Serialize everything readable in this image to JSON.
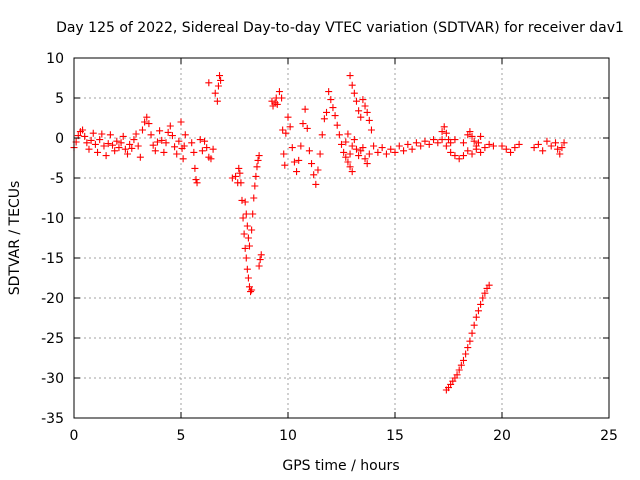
{
  "chart_data": {
    "type": "scatter",
    "title": "Day 125 of 2022, Sidereal Day-to-day VTEC variation (SDTVAR) for receiver dav1",
    "xlabel": "GPS time / hours",
    "ylabel": "SDTVAR / TECUs",
    "xlim": [
      0,
      25
    ],
    "ylim": [
      -35,
      10
    ],
    "xticks": [
      0,
      5,
      10,
      15,
      20,
      25
    ],
    "yticks": [
      10,
      5,
      0,
      -5,
      -10,
      -15,
      -20,
      -25,
      -30,
      -35
    ],
    "xtick_labels": [
      "0",
      "5",
      "10",
      "15",
      "20",
      "25"
    ],
    "ytick_labels": [
      "10",
      "5",
      "0",
      "-5",
      "-10",
      "-15",
      "-20",
      "-25",
      "-30",
      "-35"
    ],
    "grid": true,
    "marker": "plus",
    "color": "#ff0000",
    "series": [
      {
        "name": "SDTVAR",
        "points": [
          [
            0.0,
            -1.2
          ],
          [
            0.1,
            -0.5
          ],
          [
            0.2,
            0.3
          ],
          [
            0.3,
            0.8
          ],
          [
            0.4,
            1.0
          ],
          [
            0.5,
            0.2
          ],
          [
            0.6,
            -0.6
          ],
          [
            0.7,
            -1.4
          ],
          [
            0.8,
            -0.3
          ],
          [
            0.9,
            0.6
          ],
          [
            1.0,
            -0.8
          ],
          [
            1.1,
            -1.8
          ],
          [
            1.2,
            -0.2
          ],
          [
            1.3,
            0.5
          ],
          [
            1.4,
            -1.0
          ],
          [
            1.5,
            -2.2
          ],
          [
            1.6,
            -0.7
          ],
          [
            1.7,
            0.4
          ],
          [
            1.8,
            -0.9
          ],
          [
            1.9,
            -1.6
          ],
          [
            2.0,
            -0.4
          ],
          [
            2.1,
            -1.2
          ],
          [
            2.2,
            -0.6
          ],
          [
            2.3,
            0.2
          ],
          [
            2.4,
            -1.4
          ],
          [
            2.5,
            -2.0
          ],
          [
            2.6,
            -0.8
          ],
          [
            2.7,
            -1.3
          ],
          [
            2.8,
            -0.2
          ],
          [
            2.9,
            0.5
          ],
          [
            3.0,
            -1.0
          ],
          [
            3.1,
            -2.4
          ],
          [
            3.2,
            1.0
          ],
          [
            3.3,
            2.0
          ],
          [
            3.4,
            2.6
          ],
          [
            3.5,
            1.8
          ],
          [
            3.6,
            0.4
          ],
          [
            3.7,
            -0.9
          ],
          [
            3.8,
            -1.6
          ],
          [
            3.9,
            -0.5
          ],
          [
            4.0,
            0.9
          ],
          [
            4.1,
            -0.3
          ],
          [
            4.2,
            -1.8
          ],
          [
            4.3,
            -0.6
          ],
          [
            4.4,
            0.7
          ],
          [
            4.5,
            1.5
          ],
          [
            4.6,
            0.3
          ],
          [
            4.7,
            -1.1
          ],
          [
            4.8,
            -2.0
          ],
          [
            4.9,
            -0.4
          ],
          [
            5.0,
            2.0
          ],
          [
            5.05,
            -1.3
          ],
          [
            5.1,
            -2.6
          ],
          [
            5.15,
            -1.0
          ],
          [
            5.2,
            0.4
          ],
          [
            5.5,
            -0.6
          ],
          [
            5.6,
            -1.8
          ],
          [
            5.65,
            -3.8
          ],
          [
            5.7,
            -5.2
          ],
          [
            5.75,
            -5.6
          ],
          [
            5.9,
            -0.2
          ],
          [
            6.0,
            -1.6
          ],
          [
            6.1,
            -0.4
          ],
          [
            6.2,
            -1.2
          ],
          [
            6.3,
            -2.4
          ],
          [
            6.4,
            -2.6
          ],
          [
            6.5,
            -1.4
          ],
          [
            6.3,
            6.9
          ],
          [
            6.6,
            5.6
          ],
          [
            6.7,
            4.6
          ],
          [
            6.75,
            6.5
          ],
          [
            6.8,
            7.8
          ],
          [
            6.85,
            7.2
          ],
          [
            7.4,
            -5.0
          ],
          [
            7.55,
            -4.8
          ],
          [
            7.65,
            -5.6
          ],
          [
            7.7,
            -3.8
          ],
          [
            7.75,
            -4.4
          ],
          [
            7.8,
            -5.6
          ],
          [
            7.85,
            -7.8
          ],
          [
            7.9,
            -10.0
          ],
          [
            7.95,
            -12.0
          ],
          [
            8.0,
            -13.8
          ],
          [
            8.05,
            -15.0
          ],
          [
            8.1,
            -16.4
          ],
          [
            8.15,
            -17.5
          ],
          [
            8.2,
            -18.6
          ],
          [
            8.25,
            -19.2
          ],
          [
            8.3,
            -19.0
          ],
          [
            8.0,
            -8.0
          ],
          [
            8.05,
            -9.5
          ],
          [
            8.1,
            -11.0
          ],
          [
            8.15,
            -12.5
          ],
          [
            8.2,
            -13.5
          ],
          [
            8.3,
            -11.5
          ],
          [
            8.35,
            -9.5
          ],
          [
            8.4,
            -7.5
          ],
          [
            8.45,
            -6.0
          ],
          [
            8.5,
            -4.8
          ],
          [
            8.55,
            -3.6
          ],
          [
            8.6,
            -2.8
          ],
          [
            8.65,
            -2.2
          ],
          [
            8.65,
            -16.0
          ],
          [
            8.7,
            -15.2
          ],
          [
            8.75,
            -14.6
          ],
          [
            9.25,
            4.6
          ],
          [
            9.3,
            4.0
          ],
          [
            9.4,
            4.4
          ],
          [
            9.45,
            5.0
          ],
          [
            9.5,
            4.2
          ],
          [
            9.6,
            5.8
          ],
          [
            9.7,
            5.0
          ],
          [
            9.75,
            1.0
          ],
          [
            9.8,
            -2.0
          ],
          [
            9.85,
            -3.4
          ],
          [
            9.9,
            0.6
          ],
          [
            10.0,
            2.6
          ],
          [
            10.1,
            1.4
          ],
          [
            10.2,
            -1.2
          ],
          [
            10.3,
            -3.0
          ],
          [
            10.4,
            -4.2
          ],
          [
            10.5,
            -2.8
          ],
          [
            10.6,
            -1.0
          ],
          [
            10.7,
            1.8
          ],
          [
            10.8,
            3.6
          ],
          [
            10.9,
            1.2
          ],
          [
            11.0,
            -1.6
          ],
          [
            11.1,
            -3.2
          ],
          [
            11.2,
            -4.6
          ],
          [
            11.3,
            -5.8
          ],
          [
            11.4,
            -4.0
          ],
          [
            11.5,
            -2.0
          ],
          [
            11.6,
            0.4
          ],
          [
            11.7,
            2.4
          ],
          [
            11.8,
            3.2
          ],
          [
            11.9,
            5.8
          ],
          [
            12.0,
            4.8
          ],
          [
            12.1,
            3.8
          ],
          [
            12.2,
            2.8
          ],
          [
            12.3,
            1.6
          ],
          [
            12.4,
            0.4
          ],
          [
            12.5,
            -0.8
          ],
          [
            12.6,
            -1.8
          ],
          [
            12.7,
            -2.4
          ],
          [
            12.8,
            -3.0
          ],
          [
            12.9,
            -2.0
          ],
          [
            13.0,
            -1.0
          ],
          [
            13.1,
            -0.2
          ],
          [
            13.2,
            -1.4
          ],
          [
            13.3,
            -2.2
          ],
          [
            13.4,
            -1.6
          ],
          [
            13.5,
            -1.2
          ],
          [
            13.6,
            -2.6
          ],
          [
            13.7,
            -3.2
          ],
          [
            13.8,
            -2.0
          ],
          [
            12.7,
            -0.5
          ],
          [
            12.8,
            0.5
          ],
          [
            12.9,
            -3.6
          ],
          [
            13.0,
            -4.2
          ],
          [
            12.9,
            7.8
          ],
          [
            13.0,
            6.6
          ],
          [
            13.1,
            5.6
          ],
          [
            13.2,
            4.6
          ],
          [
            13.3,
            3.4
          ],
          [
            13.4,
            2.6
          ],
          [
            13.5,
            4.8
          ],
          [
            13.6,
            4.0
          ],
          [
            13.7,
            3.2
          ],
          [
            13.8,
            2.2
          ],
          [
            13.9,
            1.0
          ],
          [
            14.0,
            -1.0
          ],
          [
            14.2,
            -1.8
          ],
          [
            14.4,
            -1.2
          ],
          [
            14.6,
            -2.0
          ],
          [
            14.8,
            -1.4
          ],
          [
            15.0,
            -1.8
          ],
          [
            15.2,
            -1.0
          ],
          [
            15.4,
            -1.6
          ],
          [
            15.6,
            -0.8
          ],
          [
            15.8,
            -1.4
          ],
          [
            16.0,
            -0.6
          ],
          [
            16.2,
            -1.0
          ],
          [
            16.4,
            -0.4
          ],
          [
            16.6,
            -0.8
          ],
          [
            16.8,
            -0.2
          ],
          [
            17.0,
            -0.6
          ],
          [
            17.2,
            -0.2
          ],
          [
            17.4,
            -1.0
          ],
          [
            17.6,
            -1.8
          ],
          [
            17.8,
            -2.2
          ],
          [
            18.0,
            -2.6
          ],
          [
            18.2,
            -2.2
          ],
          [
            18.4,
            -1.6
          ],
          [
            18.6,
            -2.0
          ],
          [
            18.8,
            -1.4
          ],
          [
            19.0,
            -1.8
          ],
          [
            19.2,
            -1.2
          ],
          [
            19.4,
            -0.8
          ],
          [
            19.6,
            -1.0
          ],
          [
            17.2,
            0.8
          ],
          [
            17.3,
            1.4
          ],
          [
            17.4,
            0.6
          ],
          [
            17.5,
            -0.2
          ],
          [
            17.6,
            -0.6
          ],
          [
            17.8,
            -0.2
          ],
          [
            18.2,
            -0.6
          ],
          [
            18.4,
            0.4
          ],
          [
            18.5,
            0.8
          ],
          [
            18.6,
            0.2
          ],
          [
            18.7,
            -0.4
          ],
          [
            18.8,
            -1.0
          ],
          [
            18.9,
            -0.6
          ],
          [
            19.0,
            0.2
          ],
          [
            17.4,
            -31.5
          ],
          [
            17.5,
            -31.2
          ],
          [
            17.6,
            -30.8
          ],
          [
            17.7,
            -30.4
          ],
          [
            17.8,
            -30.0
          ],
          [
            17.9,
            -29.6
          ],
          [
            18.0,
            -29.0
          ],
          [
            18.1,
            -28.4
          ],
          [
            18.2,
            -27.8
          ],
          [
            18.3,
            -27.0
          ],
          [
            18.4,
            -26.2
          ],
          [
            18.5,
            -25.4
          ],
          [
            18.6,
            -24.4
          ],
          [
            18.7,
            -23.4
          ],
          [
            18.8,
            -22.4
          ],
          [
            18.9,
            -21.6
          ],
          [
            19.0,
            -20.8
          ],
          [
            19.1,
            -20.0
          ],
          [
            19.2,
            -19.4
          ],
          [
            19.3,
            -18.8
          ],
          [
            19.4,
            -18.4
          ],
          [
            20.0,
            -1.0
          ],
          [
            20.2,
            -1.4
          ],
          [
            20.4,
            -1.8
          ],
          [
            20.6,
            -1.2
          ],
          [
            20.8,
            -0.8
          ],
          [
            21.5,
            -1.2
          ],
          [
            21.7,
            -0.8
          ],
          [
            21.9,
            -1.6
          ],
          [
            22.1,
            -0.4
          ],
          [
            22.3,
            -1.0
          ],
          [
            22.5,
            -0.6
          ],
          [
            22.6,
            -1.4
          ],
          [
            22.7,
            -2.0
          ],
          [
            22.8,
            -1.2
          ],
          [
            22.9,
            -0.6
          ]
        ]
      }
    ]
  }
}
